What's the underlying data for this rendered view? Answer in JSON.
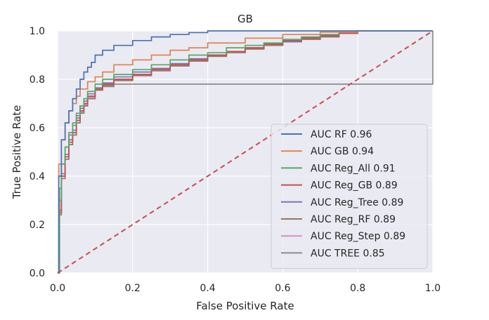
{
  "chart_data": {
    "type": "line",
    "title": "GB",
    "xlabel": "False Positive Rate",
    "ylabel": "True Positive Rate",
    "xlim": [
      0.0,
      1.0
    ],
    "ylim": [
      0.0,
      1.0
    ],
    "xticks": [
      "0.0",
      "0.2",
      "0.4",
      "0.6",
      "0.8",
      "1.0"
    ],
    "yticks": [
      "0.0",
      "0.2",
      "0.4",
      "0.6",
      "0.8",
      "1.0"
    ],
    "grid": true,
    "legend_position": "lower-right",
    "colors": {
      "background": "#eaeaf2",
      "grid": "#ffffff",
      "diagonal": "#c44e52"
    },
    "diagonal": {
      "x": [
        0,
        1
      ],
      "y": [
        0,
        1
      ],
      "style": "dashed"
    },
    "series": [
      {
        "name": "AUC RF 0.96",
        "color": "#4c72b0",
        "x": [
          0,
          0.003,
          0.01,
          0.02,
          0.03,
          0.04,
          0.05,
          0.06,
          0.07,
          0.08,
          0.09,
          0.1,
          0.12,
          0.15,
          0.2,
          0.25,
          0.3,
          0.35,
          0.4,
          1.0
        ],
        "y": [
          0,
          0.4,
          0.55,
          0.62,
          0.67,
          0.72,
          0.76,
          0.8,
          0.83,
          0.85,
          0.87,
          0.9,
          0.92,
          0.94,
          0.96,
          0.975,
          0.985,
          0.993,
          1.0,
          1.0
        ]
      },
      {
        "name": "AUC GB 0.94",
        "color": "#dd8452",
        "x": [
          0,
          0.003,
          0.01,
          0.02,
          0.03,
          0.04,
          0.05,
          0.06,
          0.08,
          0.1,
          0.12,
          0.15,
          0.2,
          0.25,
          0.3,
          0.35,
          0.4,
          0.5,
          0.6,
          0.7,
          0.8,
          0.9,
          1.0
        ],
        "y": [
          0,
          0.45,
          0.55,
          0.62,
          0.67,
          0.7,
          0.73,
          0.76,
          0.79,
          0.81,
          0.83,
          0.86,
          0.88,
          0.9,
          0.92,
          0.93,
          0.95,
          0.97,
          0.985,
          0.995,
          1.0,
          1.0,
          1.0
        ]
      },
      {
        "name": "AUC Reg_All 0.91",
        "color": "#55a868",
        "x": [
          0,
          0.005,
          0.01,
          0.02,
          0.03,
          0.04,
          0.05,
          0.06,
          0.07,
          0.08,
          0.1,
          0.12,
          0.15,
          0.2,
          0.25,
          0.3,
          0.35,
          0.4,
          0.45,
          0.5,
          0.55,
          0.6,
          0.65,
          0.7,
          0.75,
          0.8,
          1.0
        ],
        "y": [
          0,
          0.3,
          0.45,
          0.52,
          0.57,
          0.61,
          0.65,
          0.69,
          0.72,
          0.75,
          0.78,
          0.8,
          0.82,
          0.84,
          0.86,
          0.88,
          0.9,
          0.91,
          0.93,
          0.94,
          0.95,
          0.965,
          0.975,
          0.985,
          0.995,
          1.0,
          1.0
        ]
      },
      {
        "name": "AUC Reg_GB 0.89",
        "color": "#c44e52",
        "x": [
          0,
          0.005,
          0.01,
          0.02,
          0.03,
          0.04,
          0.05,
          0.06,
          0.07,
          0.08,
          0.1,
          0.12,
          0.15,
          0.2,
          0.25,
          0.3,
          0.35,
          0.4,
          0.45,
          0.5,
          0.55,
          0.6,
          0.65,
          0.7,
          0.75,
          0.8,
          1.0
        ],
        "y": [
          0,
          0.25,
          0.4,
          0.48,
          0.54,
          0.58,
          0.63,
          0.67,
          0.7,
          0.73,
          0.76,
          0.78,
          0.8,
          0.82,
          0.84,
          0.86,
          0.88,
          0.9,
          0.915,
          0.93,
          0.945,
          0.96,
          0.97,
          0.98,
          0.99,
          1.0,
          1.0
        ]
      },
      {
        "name": "AUC Reg_Tree 0.89",
        "color": "#8172b3",
        "x": [
          0,
          0.005,
          0.01,
          0.02,
          0.03,
          0.04,
          0.05,
          0.06,
          0.07,
          0.08,
          0.1,
          0.12,
          0.15,
          0.2,
          0.25,
          0.3,
          0.35,
          0.4,
          0.45,
          0.5,
          0.55,
          0.6,
          0.65,
          0.7,
          0.75,
          0.8,
          1.0
        ],
        "y": [
          0,
          0.26,
          0.41,
          0.49,
          0.55,
          0.59,
          0.64,
          0.68,
          0.71,
          0.74,
          0.765,
          0.785,
          0.81,
          0.83,
          0.845,
          0.865,
          0.885,
          0.9,
          0.915,
          0.93,
          0.945,
          0.955,
          0.97,
          0.98,
          0.99,
          1.0,
          1.0
        ]
      },
      {
        "name": "AUC Reg_RF 0.89",
        "color": "#937860",
        "x": [
          0,
          0.005,
          0.01,
          0.02,
          0.03,
          0.04,
          0.05,
          0.06,
          0.07,
          0.08,
          0.1,
          0.12,
          0.15,
          0.2,
          0.25,
          0.3,
          0.35,
          0.4,
          0.45,
          0.5,
          0.55,
          0.6,
          0.65,
          0.7,
          0.75,
          0.8,
          1.0
        ],
        "y": [
          0,
          0.24,
          0.39,
          0.47,
          0.53,
          0.57,
          0.62,
          0.66,
          0.69,
          0.72,
          0.755,
          0.775,
          0.795,
          0.815,
          0.835,
          0.855,
          0.875,
          0.895,
          0.91,
          0.925,
          0.94,
          0.955,
          0.965,
          0.975,
          0.99,
          1.0,
          1.0
        ]
      },
      {
        "name": "AUC Reg_Step 0.89",
        "color": "#da8bc3",
        "x": [
          0,
          0.005,
          0.01,
          0.02,
          0.03,
          0.04,
          0.05,
          0.06,
          0.07,
          0.08,
          0.1,
          0.12,
          0.15,
          0.2,
          0.25,
          0.3,
          0.35,
          0.4,
          0.45,
          0.5,
          0.55,
          0.6,
          0.65,
          0.7,
          0.75,
          0.8,
          1.0
        ],
        "y": [
          0,
          0.25,
          0.4,
          0.48,
          0.54,
          0.58,
          0.63,
          0.665,
          0.695,
          0.725,
          0.76,
          0.78,
          0.8,
          0.82,
          0.84,
          0.86,
          0.88,
          0.895,
          0.91,
          0.925,
          0.94,
          0.955,
          0.965,
          0.98,
          0.99,
          1.0,
          1.0
        ]
      },
      {
        "name": "AUC TREE 0.85",
        "color": "#8c8c8c",
        "x": [
          0,
          0.005,
          0.01,
          0.02,
          0.03,
          0.04,
          0.05,
          0.06,
          0.08,
          0.1,
          0.12,
          0.15,
          1.0
        ],
        "y": [
          0,
          0.35,
          0.45,
          0.52,
          0.58,
          0.62,
          0.66,
          0.69,
          0.73,
          0.76,
          0.77,
          0.78,
          1.0
        ]
      }
    ]
  }
}
